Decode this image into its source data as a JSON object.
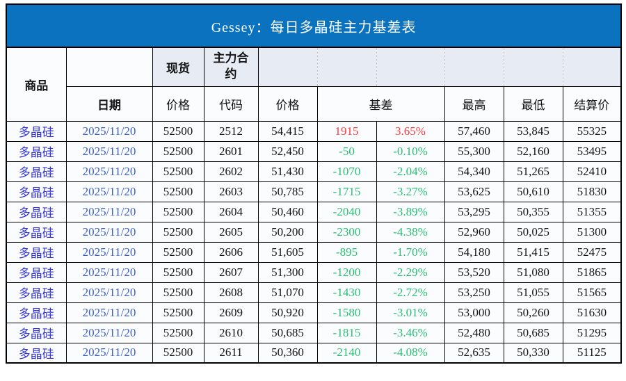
{
  "header": {
    "commodity": "商品",
    "date": "日期",
    "spot_group": "现货",
    "main_contract_group": "主力合约",
    "spot_price": "价格",
    "code": "代码",
    "price": "价格",
    "basis": "基差",
    "high": "最高",
    "low": "最低",
    "settle": "结算价"
  },
  "colors": {
    "title_bg": "#0A72BE",
    "title_text": "#FFFFFF",
    "header_tint": "#E7EBF3",
    "cell_bg": "#FAFCFE",
    "commodity_text": "#3333DD",
    "date_text": "#3D5FC4",
    "up": "#F93B3B",
    "down": "#29BE72",
    "border": "#000000",
    "dashed_border": "#C0C4CC"
  },
  "chart_data": {
    "type": "table",
    "title": "Gessey：每日多晶硅主力基差表",
    "columns": [
      "商品",
      "日期",
      "现货价格",
      "主力合约代码",
      "价格",
      "基差",
      "基差%",
      "最高",
      "最低",
      "结算价"
    ],
    "rows": [
      [
        "多晶硅",
        "2025/11/20",
        "52500",
        "2512",
        "54,415",
        "1915",
        "3.65%",
        "57,460",
        "53,845",
        "55325"
      ],
      [
        "多晶硅",
        "2025/11/20",
        "52500",
        "2601",
        "52,450",
        "-50",
        "-0.10%",
        "55,300",
        "52,160",
        "53495"
      ],
      [
        "多晶硅",
        "2025/11/20",
        "52500",
        "2602",
        "51,430",
        "-1070",
        "-2.04%",
        "54,340",
        "51,265",
        "52410"
      ],
      [
        "多晶硅",
        "2025/11/20",
        "52500",
        "2603",
        "50,785",
        "-1715",
        "-3.27%",
        "53,625",
        "50,610",
        "51830"
      ],
      [
        "多晶硅",
        "2025/11/20",
        "52500",
        "2604",
        "50,460",
        "-2040",
        "-3.89%",
        "53,295",
        "50,355",
        "51355"
      ],
      [
        "多晶硅",
        "2025/11/20",
        "52500",
        "2605",
        "50,200",
        "-2300",
        "-4.38%",
        "52,960",
        "50,025",
        "51300"
      ],
      [
        "多晶硅",
        "2025/11/20",
        "52500",
        "2606",
        "51,605",
        "-895",
        "-1.70%",
        "54,180",
        "51,415",
        "52475"
      ],
      [
        "多晶硅",
        "2025/11/20",
        "52500",
        "2607",
        "51,300",
        "-1200",
        "-2.29%",
        "53,520",
        "51,080",
        "51865"
      ],
      [
        "多晶硅",
        "2025/11/20",
        "52500",
        "2608",
        "51,070",
        "-1430",
        "-2.72%",
        "53,250",
        "51,055",
        "51565"
      ],
      [
        "多晶硅",
        "2025/11/20",
        "52500",
        "2609",
        "50,920",
        "-1580",
        "-3.01%",
        "53,000",
        "50,260",
        "51630"
      ],
      [
        "多晶硅",
        "2025/11/20",
        "52500",
        "2610",
        "50,685",
        "-1815",
        "-3.46%",
        "52,480",
        "50,685",
        "51295"
      ],
      [
        "多晶硅",
        "2025/11/20",
        "52500",
        "2611",
        "50,360",
        "-2140",
        "-4.08%",
        "52,635",
        "50,330",
        "51125"
      ]
    ]
  }
}
